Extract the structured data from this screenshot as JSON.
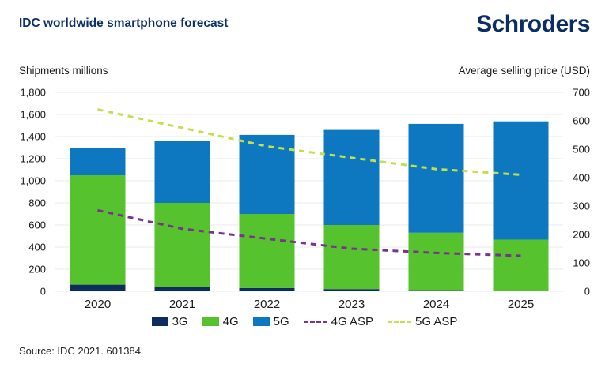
{
  "header": {
    "title": "IDC worldwide smartphone forecast",
    "logo": "Schroders"
  },
  "footer": {
    "source": "Source: IDC 2021. 601384."
  },
  "colors": {
    "brand_navy": "#0c3068",
    "grid": "#e8e8e8",
    "text": "#1a1a1a"
  },
  "chart_data": {
    "type": "bar",
    "subtype": "stacked-bars-with-lines",
    "title": "IDC worldwide smartphone forecast",
    "left_axis_title": "Shipments millions",
    "right_axis_title": "Average selling price (USD)",
    "categories": [
      "2020",
      "2021",
      "2022",
      "2023",
      "2024",
      "2025"
    ],
    "left_axis": {
      "min": 0,
      "max": 1800,
      "step": 200
    },
    "right_axis": {
      "min": 0,
      "max": 700,
      "step": 100
    },
    "grid": "horizontal",
    "legend_position": "bottom",
    "grid_color": "#e8e8e8",
    "series": [
      {
        "name": "3G",
        "type": "bar",
        "axis": "left",
        "color": "#0d2d5f",
        "values": [
          60,
          40,
          30,
          20,
          10,
          3
        ]
      },
      {
        "name": "4G",
        "type": "bar",
        "axis": "left",
        "color": "#56c22d",
        "values": [
          990,
          760,
          670,
          580,
          520,
          465
        ]
      },
      {
        "name": "5G",
        "type": "bar",
        "axis": "left",
        "color": "#0d78bf",
        "values": [
          245,
          560,
          715,
          860,
          985,
          1070
        ]
      },
      {
        "name": "4G ASP",
        "type": "line",
        "axis": "right",
        "color": "#7a3191",
        "values": [
          285,
          220,
          185,
          150,
          135,
          125
        ]
      },
      {
        "name": "5G ASP",
        "type": "line",
        "axis": "right",
        "color": "#c3df4a",
        "values": [
          640,
          575,
          510,
          470,
          430,
          410
        ]
      }
    ],
    "bar_totals": [
      1295,
      1360,
      1415,
      1460,
      1515,
      1538
    ]
  }
}
